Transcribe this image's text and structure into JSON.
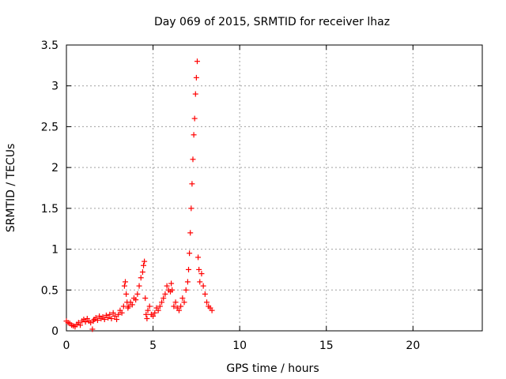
{
  "chart_data": {
    "type": "scatter",
    "title": "Day 069 of 2015, SRMTID for receiver lhaz",
    "xlabel": "GPS time / hours",
    "ylabel": "SRMTID / TECUs",
    "xlim": [
      0,
      24
    ],
    "ylim": [
      0,
      3.5
    ],
    "xticks": [
      0,
      5,
      10,
      15,
      20
    ],
    "xtick_labels": [
      "0",
      "5",
      "10",
      "15",
      "20"
    ],
    "yticks": [
      0,
      0.5,
      1,
      1.5,
      2,
      2.5,
      3,
      3.5
    ],
    "ytick_labels": [
      "0",
      "0.5",
      "1",
      "1.5",
      "2",
      "2.5",
      "3",
      "3.5"
    ],
    "grid": true,
    "legend": "none",
    "marker": "plus",
    "color": "#ff0000",
    "series": [
      {
        "x": [
          0.0,
          0.1,
          0.2,
          0.3,
          0.4,
          0.5,
          0.6,
          0.7,
          0.8,
          0.9,
          1.0,
          1.1,
          1.2,
          1.3,
          1.4,
          1.5,
          1.55,
          1.6,
          1.7,
          1.8,
          1.9,
          2.0,
          2.1,
          2.2,
          2.3,
          2.4,
          2.5,
          2.6,
          2.7,
          2.8,
          2.9,
          3.0,
          3.1,
          3.2,
          3.3,
          3.35,
          3.4,
          3.45,
          3.5,
          3.55,
          3.6,
          3.7,
          3.8,
          3.9,
          4.0,
          4.1,
          4.2,
          4.3,
          4.4,
          4.45,
          4.5,
          4.55,
          4.6,
          4.65,
          4.7,
          4.8,
          4.9,
          5.0,
          5.1,
          5.2,
          5.3,
          5.4,
          5.5,
          5.6,
          5.7,
          5.8,
          5.9,
          6.0,
          6.05,
          6.1,
          6.2,
          6.3,
          6.4,
          6.5,
          6.6,
          6.7,
          6.8,
          6.9,
          7.0,
          7.05,
          7.1,
          7.15,
          7.2,
          7.25,
          7.3,
          7.35,
          7.4,
          7.45,
          7.5,
          7.55,
          7.6,
          7.65,
          7.7,
          7.8,
          7.9,
          8.0,
          8.1,
          8.2,
          8.3,
          8.4
        ],
        "y": [
          0.12,
          0.1,
          0.09,
          0.07,
          0.06,
          0.05,
          0.08,
          0.1,
          0.07,
          0.12,
          0.14,
          0.11,
          0.15,
          0.12,
          0.1,
          0.02,
          0.12,
          0.14,
          0.16,
          0.13,
          0.18,
          0.15,
          0.17,
          0.14,
          0.19,
          0.16,
          0.2,
          0.15,
          0.22,
          0.18,
          0.14,
          0.2,
          0.25,
          0.22,
          0.3,
          0.55,
          0.6,
          0.45,
          0.35,
          0.28,
          0.3,
          0.35,
          0.32,
          0.4,
          0.38,
          0.45,
          0.55,
          0.65,
          0.72,
          0.8,
          0.85,
          0.4,
          0.2,
          0.15,
          0.25,
          0.3,
          0.2,
          0.18,
          0.22,
          0.28,
          0.25,
          0.3,
          0.35,
          0.4,
          0.45,
          0.55,
          0.5,
          0.48,
          0.58,
          0.5,
          0.3,
          0.35,
          0.28,
          0.25,
          0.3,
          0.4,
          0.35,
          0.5,
          0.6,
          0.75,
          0.95,
          1.2,
          1.5,
          1.8,
          2.1,
          2.4,
          2.6,
          2.9,
          3.1,
          3.3,
          0.9,
          0.75,
          0.6,
          0.7,
          0.55,
          0.45,
          0.35,
          0.3,
          0.28,
          0.25
        ]
      }
    ]
  }
}
